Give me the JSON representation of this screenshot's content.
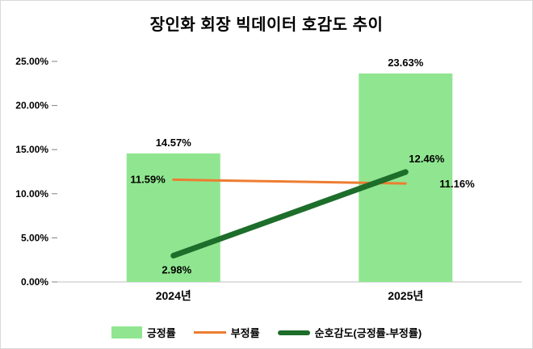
{
  "window": {
    "background": "#ffffff",
    "border_color": "#d9d9d9"
  },
  "chart_data": {
    "type": "combo",
    "title": "장인화 회장 빅데이터 호감도 추이",
    "categories": [
      "2024년",
      "2025년"
    ],
    "series": [
      {
        "name": "긍정률",
        "type": "bar",
        "color": "#90e690",
        "values": [
          14.57,
          23.63
        ],
        "labels": [
          "14.57%",
          "23.63%"
        ],
        "stroke_width": 0
      },
      {
        "name": "부정률",
        "type": "line",
        "color": "#ed7d31",
        "values": [
          11.59,
          11.16
        ],
        "labels": [
          "11.59%",
          "11.16%"
        ],
        "stroke_width": 3
      },
      {
        "name": "순호감도(긍정률-부정률)",
        "type": "line",
        "color": "#1d6e2a",
        "values": [
          2.98,
          12.46
        ],
        "labels": [
          "2.98%",
          "12.46%"
        ],
        "stroke_width": 7
      }
    ],
    "ylim": [
      0,
      25
    ],
    "ytick_step": 5,
    "ytick_labels": [
      "0.00%",
      "5.00%",
      "10.00%",
      "15.00%",
      "20.00%",
      "25.00%"
    ],
    "grid": false,
    "legend_position": "bottom",
    "axis_color": "#bfbfbf",
    "tick_color": "#808080",
    "text_color": "#000000"
  }
}
